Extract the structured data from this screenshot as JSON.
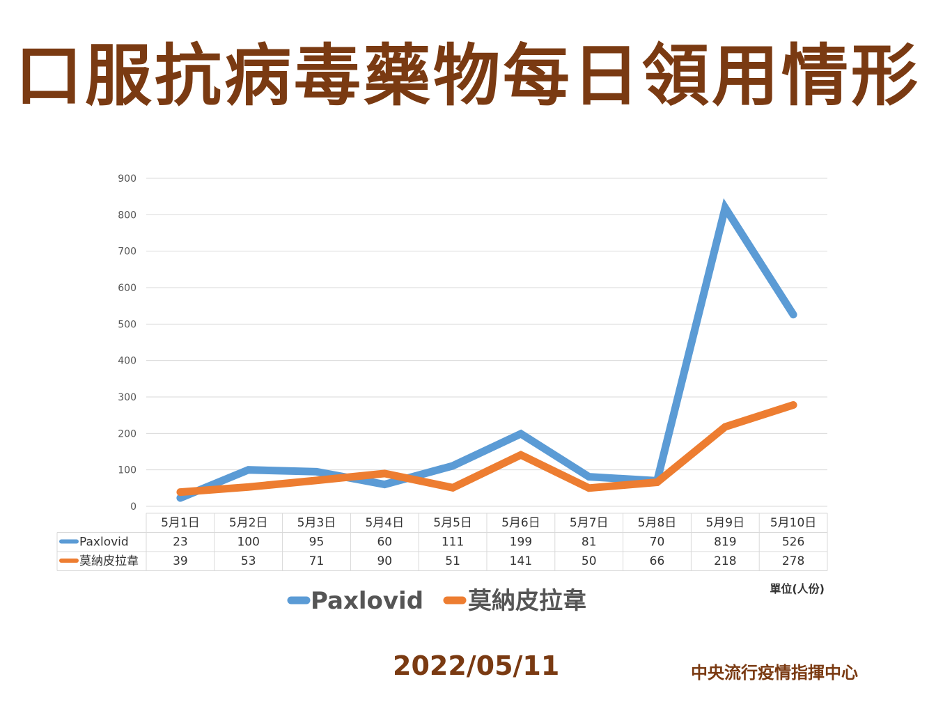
{
  "header": {
    "title": "口服抗病毒藥物每日領用情形"
  },
  "chart_data": {
    "type": "line",
    "categories": [
      "5月1日",
      "5月2日",
      "5月3日",
      "5月4日",
      "5月5日",
      "5月6日",
      "5月7日",
      "5月8日",
      "5月9日",
      "5月10日"
    ],
    "series": [
      {
        "name": "Paxlovid",
        "values": [
          23,
          100,
          95,
          60,
          111,
          199,
          81,
          70,
          819,
          526
        ],
        "color": "#5b9bd5"
      },
      {
        "name": "莫納皮拉韋",
        "values": [
          39,
          53,
          71,
          90,
          51,
          141,
          50,
          66,
          218,
          278
        ],
        "color": "#ed7d31"
      }
    ],
    "ylim": [
      0,
      900
    ],
    "yticks": [
      0,
      100,
      200,
      300,
      400,
      500,
      600,
      700,
      800,
      900
    ],
    "grid": true,
    "legend": "bottom",
    "data_table": true
  },
  "footer": {
    "unit": "單位(人份)",
    "date": "2022/05/11",
    "org": "中央流行疫情指揮中心"
  },
  "colors": {
    "title": "#7a3a12",
    "grid": "#d9d9d9"
  }
}
